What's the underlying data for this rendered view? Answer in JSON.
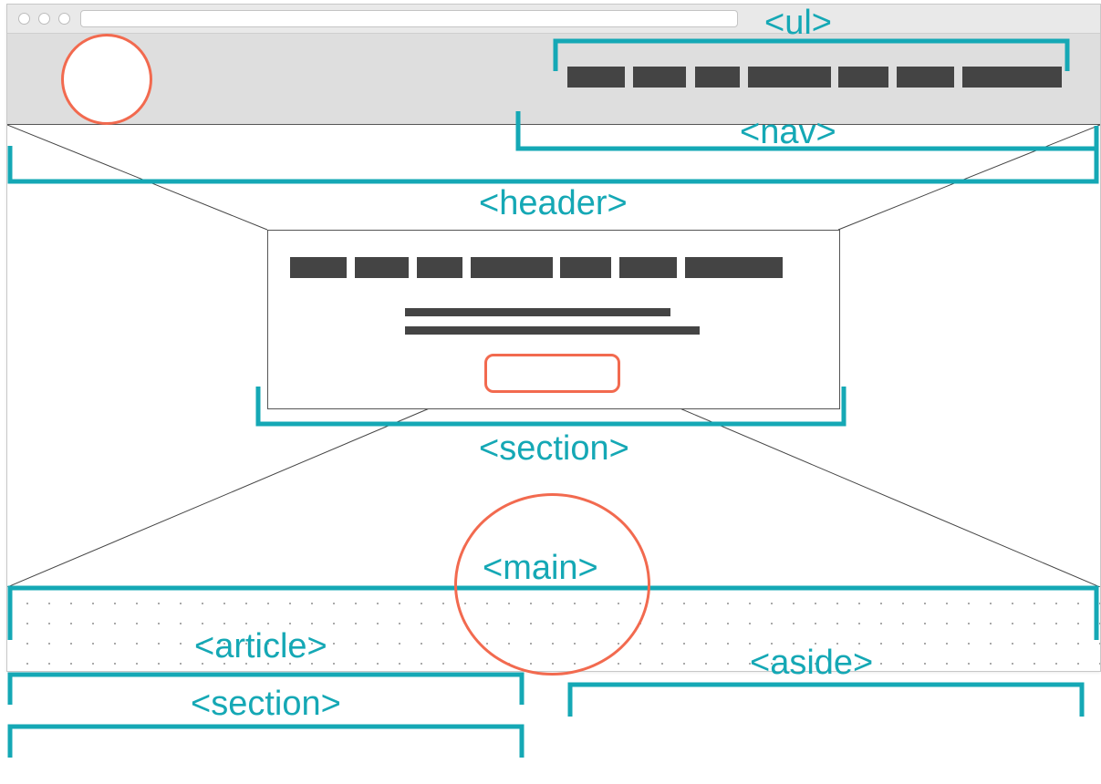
{
  "diagram": {
    "labels": {
      "ul": "<ul>",
      "nav": "<nav>",
      "header": "<header>",
      "section_hero": "<section>",
      "main": "<main>",
      "article": "<article>",
      "section_bottom": "<section>",
      "aside": "<aside>"
    },
    "colors": {
      "annotation": "#15a8b5",
      "highlight": "#f26a4f",
      "placeholder_bar": "#444444",
      "header_background": "#dedede"
    }
  }
}
